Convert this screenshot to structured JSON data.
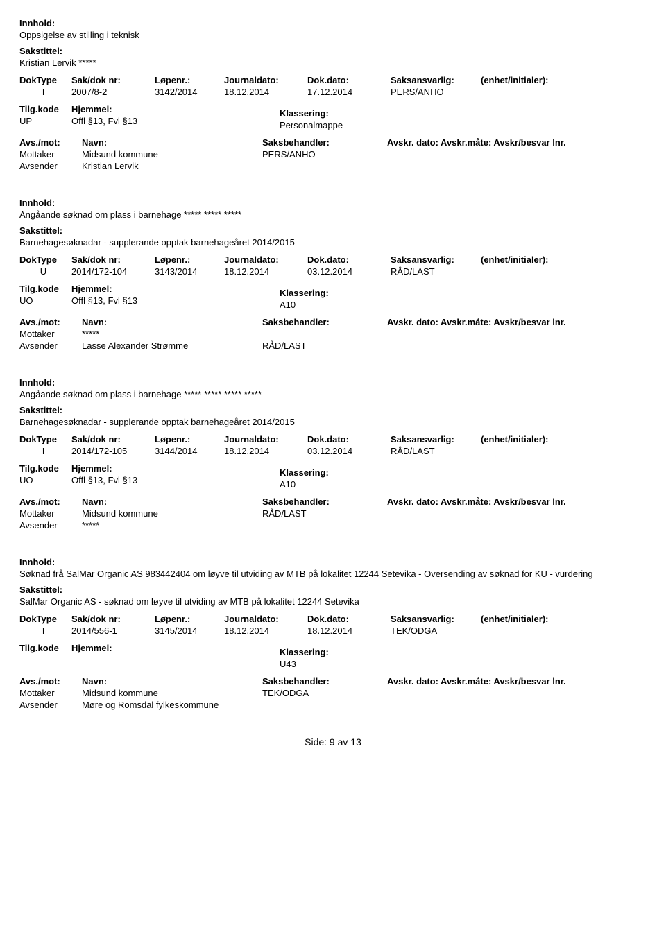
{
  "labels": {
    "innhold": "Innhold:",
    "sakstittel": "Sakstittel:",
    "doktype": "DokType",
    "sakdok": "Sak/dok nr:",
    "lopenr": "Løpenr.:",
    "jdato": "Journaldato:",
    "ddato": "Dok.dato:",
    "saksans": "Saksansvarlig:",
    "enhet": "(enhet/initialer):",
    "tilgkode": "Tilg.kode",
    "hjemmel": "Hjemmel:",
    "klassering": "Klassering:",
    "avsmot": "Avs./mot:",
    "navn": "Navn:",
    "saksbeh": "Saksbehandler:",
    "avskr": "Avskr. dato: Avskr.måte: Avskr/besvar lnr.",
    "mottaker": "Mottaker",
    "avsender": "Avsender"
  },
  "footer": {
    "text": "Side:  9  av  13"
  },
  "records": [
    {
      "innhold": "Oppsigelse av stilling i teknisk",
      "sakstittel": "Kristian Lervik   *****",
      "doktype": "I",
      "sakdok": "2007/8-2",
      "lopenr": "3142/2014",
      "jdato": "18.12.2014",
      "ddato": "17.12.2014",
      "saksans": "PERS/ANHO",
      "enhet": "",
      "tilgkode": "UP",
      "hjemmel": "Offl §13, Fvl §13",
      "klassering": "Personalmappe",
      "avskr": "",
      "mottaker": "Midsund kommune",
      "mottaker_handler": "PERS/ANHO",
      "avsender": "Kristian Lervik",
      "avsender_handler": ""
    },
    {
      "innhold": "Angåande søknad om plass i barnehage ***** ***** *****",
      "sakstittel": "Barnehagesøknadar - supplerande opptak barnehageåret 2014/2015",
      "doktype": "U",
      "sakdok": "2014/172-104",
      "lopenr": "3143/2014",
      "jdato": "18.12.2014",
      "ddato": "03.12.2014",
      "saksans": "RÅD/LAST",
      "enhet": "",
      "tilgkode": "UO",
      "hjemmel": "Offl §13, Fvl §13",
      "klassering": "A10",
      "avskr": "",
      "mottaker": "*****",
      "mottaker_handler": "",
      "avsender": "Lasse Alexander Strømme",
      "avsender_handler": "RÅD/LAST"
    },
    {
      "innhold": "Angåande søknad om plass i barnehage ***** ***** ***** *****",
      "sakstittel": "Barnehagesøknadar - supplerande opptak barnehageåret 2014/2015",
      "doktype": "I",
      "sakdok": "2014/172-105",
      "lopenr": "3144/2014",
      "jdato": "18.12.2014",
      "ddato": "03.12.2014",
      "saksans": "RÅD/LAST",
      "enhet": "",
      "tilgkode": "UO",
      "hjemmel": "Offl §13, Fvl §13",
      "klassering": "A10",
      "avskr": "Avskr. dato: Avskr.måte: Avskr/besvar lnr.",
      "mottaker": "Midsund kommune",
      "mottaker_handler": "RÅD/LAST",
      "avsender": "*****",
      "avsender_handler": ""
    },
    {
      "innhold": "Søknad frå SalMar Organic AS 983442404 om løyve til utviding av MTB på lokalitet 12244 Setevika - Oversending av søknad for KU - vurdering",
      "sakstittel": "SalMar Organic AS - søknad om løyve til utviding av MTB på lokalitet 12244 Setevika",
      "doktype": "I",
      "sakdok": "2014/556-1",
      "lopenr": "3145/2014",
      "jdato": "18.12.2014",
      "ddato": "18.12.2014",
      "saksans": "TEK/ODGA",
      "enhet": "",
      "tilgkode": "",
      "hjemmel": "",
      "klassering": "U43",
      "avskr": "Avskr. dato: Avskr.måte: Avskr/besvar lnr.",
      "mottaker": "Midsund kommune",
      "mottaker_handler": "TEK/ODGA",
      "avsender": "Møre og Romsdal fylkeskommune",
      "avsender_handler": ""
    }
  ]
}
